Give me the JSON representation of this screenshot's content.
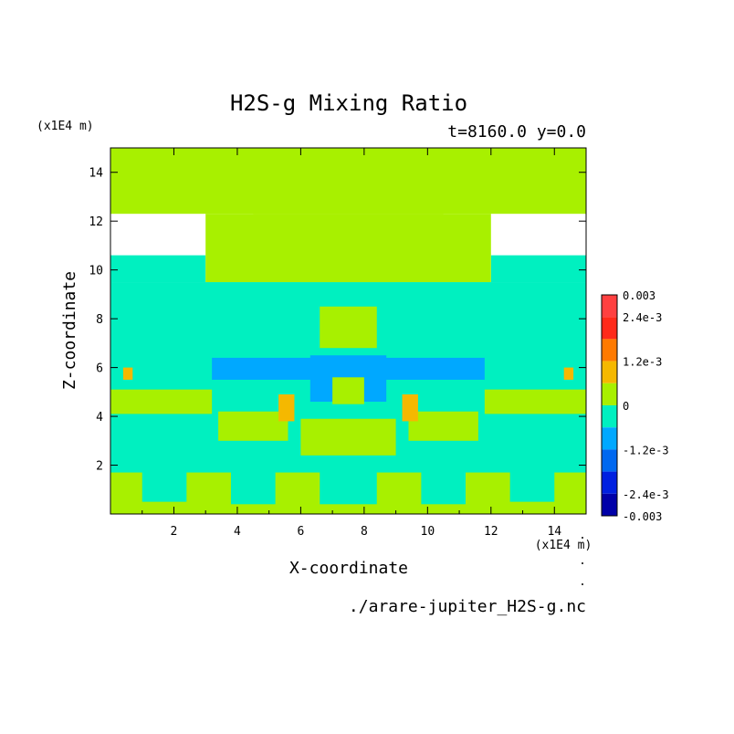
{
  "chart_data": {
    "type": "heatmap",
    "title": "H2S-g Mixing Ratio",
    "subtitle": "t=8160.0 y=0.0",
    "xlabel": "X-coordinate",
    "ylabel": "Z-coordinate",
    "x_unit": "(x1E4 m)",
    "z_unit": "(x1E4 m)",
    "xlim": [
      0,
      15
    ],
    "ylim": [
      0,
      15
    ],
    "x_ticks": [
      "2",
      "4",
      "6",
      "8",
      "10",
      "12",
      "14"
    ],
    "y_ticks": [
      "2",
      "4",
      "6",
      "8",
      "10",
      "12",
      "14"
    ],
    "footer": "./arare-jupiter_H2S-g.nc",
    "colorbar": {
      "labels": [
        "0.003",
        "2.4e-3",
        "1.2e-3",
        "0",
        "-1.2e-3",
        "-2.4e-3",
        "-0.003"
      ],
      "levels": [
        {
          "min": 0.0024,
          "max": 0.003,
          "color": "#ff4040"
        },
        {
          "min": 0.0018,
          "max": 0.0024,
          "color": "#ff2a1a"
        },
        {
          "min": 0.0012,
          "max": 0.0018,
          "color": "#ff7a00"
        },
        {
          "min": 0.0006,
          "max": 0.0012,
          "color": "#f5b800"
        },
        {
          "min": 0.0,
          "max": 0.0006,
          "color": "#a8f000"
        },
        {
          "min": -0.0006,
          "max": 0.0,
          "color": "#00f0c0"
        },
        {
          "min": -0.0012,
          "max": -0.0006,
          "color": "#00a8ff"
        },
        {
          "min": -0.0018,
          "max": -0.0012,
          "color": "#0068f0"
        },
        {
          "min": -0.0024,
          "max": -0.0018,
          "color": "#0020e0"
        },
        {
          "min": -0.003,
          "max": -0.0024,
          "color": "#0000a8"
        }
      ]
    },
    "regions": [
      {
        "color": "#00f0c0",
        "x": [
          0,
          15
        ],
        "z": [
          0,
          9.5
        ]
      },
      {
        "color": "#00f0c0",
        "x": [
          0,
          3
        ],
        "z": [
          9.5,
          10.6
        ]
      },
      {
        "color": "#00f0c0",
        "x": [
          12,
          15
        ],
        "z": [
          9.5,
          10.6
        ]
      },
      {
        "color": "#00f0c0",
        "x": [
          5,
          10
        ],
        "z": [
          9.5,
          10.3
        ]
      },
      {
        "color": "#a8f000",
        "x": [
          4.5,
          10.5
        ],
        "z": [
          10.3,
          12.3
        ]
      },
      {
        "color": "#a8f000",
        "x": [
          6,
          9
        ],
        "z": [
          9.5,
          10.3
        ]
      },
      {
        "color": "#a8f000",
        "x": [
          0,
          15
        ],
        "z": [
          12.3,
          15
        ]
      },
      {
        "color": "#a8f000",
        "x": [
          3,
          12
        ],
        "z": [
          9.5,
          12.3
        ]
      },
      {
        "color": "#a8f000",
        "x": [
          0,
          15
        ],
        "z": [
          0,
          1.7
        ]
      },
      {
        "color": "#a8f000",
        "x": [
          6.6,
          8.4
        ],
        "z": [
          6.8,
          8.5
        ]
      },
      {
        "color": "#a8f000",
        "x": [
          0,
          3.2
        ],
        "z": [
          4.1,
          5.1
        ]
      },
      {
        "color": "#a8f000",
        "x": [
          11.8,
          15
        ],
        "z": [
          4.1,
          5.1
        ]
      },
      {
        "color": "#a8f000",
        "x": [
          3.4,
          5.6
        ],
        "z": [
          3.0,
          4.2
        ]
      },
      {
        "color": "#a8f000",
        "x": [
          9.4,
          11.6
        ],
        "z": [
          3.0,
          4.2
        ]
      },
      {
        "color": "#a8f000",
        "x": [
          6.0,
          9.0
        ],
        "z": [
          2.4,
          3.9
        ]
      },
      {
        "color": "#00f0c0",
        "x": [
          1.0,
          2.4
        ],
        "z": [
          0.5,
          2.4
        ]
      },
      {
        "color": "#00f0c0",
        "x": [
          3.8,
          5.2
        ],
        "z": [
          0.4,
          2.6
        ]
      },
      {
        "color": "#00f0c0",
        "x": [
          9.8,
          11.2
        ],
        "z": [
          0.4,
          2.6
        ]
      },
      {
        "color": "#00f0c0",
        "x": [
          12.6,
          14.0
        ],
        "z": [
          0.5,
          2.4
        ]
      },
      {
        "color": "#00f0c0",
        "x": [
          6.6,
          8.4
        ],
        "z": [
          0.4,
          2.0
        ]
      },
      {
        "color": "#00a8ff",
        "x": [
          3.2,
          6.4
        ],
        "z": [
          5.5,
          6.4
        ]
      },
      {
        "color": "#00a8ff",
        "x": [
          8.6,
          11.8
        ],
        "z": [
          5.5,
          6.4
        ]
      },
      {
        "color": "#00a8ff",
        "x": [
          6.3,
          8.7
        ],
        "z": [
          4.6,
          6.5
        ]
      },
      {
        "color": "#a8f000",
        "x": [
          7.0,
          8.0
        ],
        "z": [
          4.5,
          5.6
        ]
      },
      {
        "color": "#f5b800",
        "x": [
          5.3,
          5.8
        ],
        "z": [
          3.8,
          4.9
        ]
      },
      {
        "color": "#f5b800",
        "x": [
          9.2,
          9.7
        ],
        "z": [
          3.8,
          4.9
        ]
      },
      {
        "color": "#f5b800",
        "x": [
          0.4,
          0.7
        ],
        "z": [
          5.5,
          6.0
        ]
      },
      {
        "color": "#f5b800",
        "x": [
          14.3,
          14.6
        ],
        "z": [
          5.5,
          6.0
        ]
      }
    ]
  }
}
